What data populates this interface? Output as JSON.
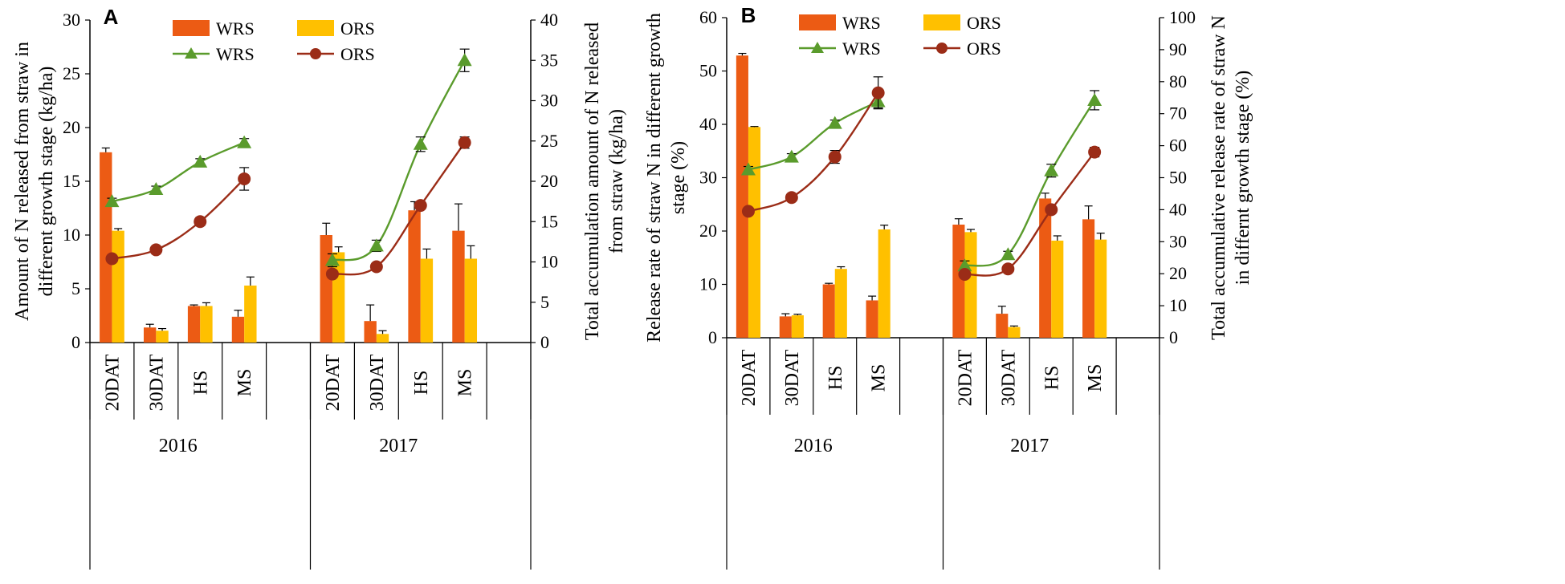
{
  "chart_data": [
    {
      "panel": "A",
      "type": "bar+line",
      "groups": [
        "2016",
        "2017"
      ],
      "categories": [
        "20DAT",
        "30DAT",
        "HS",
        "MS",
        "20DAT",
        "30DAT",
        "HS",
        "MS"
      ],
      "bar_series": [
        {
          "name": "WRS",
          "color": "#ec5b14",
          "values": [
            17.7,
            1.4,
            3.4,
            2.4,
            10.0,
            2.0,
            12.3,
            10.4
          ],
          "errors": [
            0.4,
            0.3,
            0.1,
            0.6,
            1.1,
            1.5,
            0.8,
            2.5
          ]
        },
        {
          "name": "ORS",
          "color": "#ffc000",
          "values": [
            10.4,
            1.1,
            3.4,
            5.3,
            8.4,
            0.8,
            7.8,
            7.8
          ],
          "errors": [
            0.2,
            0.2,
            0.3,
            0.8,
            0.5,
            0.3,
            0.9,
            1.2
          ]
        }
      ],
      "line_series": [
        {
          "name": "WRS",
          "color": "#5a9b2c",
          "marker": "triangle",
          "values": [
            17.5,
            19.0,
            22.4,
            24.8,
            10.2,
            12.0,
            24.6,
            35.0
          ],
          "errors": [
            0.4,
            0.4,
            0.4,
            0.5,
            0.8,
            0.7,
            0.9,
            1.4
          ]
        },
        {
          "name": "ORS",
          "color": "#9b2c17",
          "marker": "circle",
          "values": [
            10.4,
            11.5,
            15.0,
            20.3,
            8.5,
            9.4,
            17.0,
            24.8
          ],
          "errors": [
            0.2,
            0.2,
            0.5,
            1.4,
            0.3,
            0.3,
            0.3,
            0.7
          ]
        }
      ],
      "ylim_left": [
        0,
        30
      ],
      "yticks_left": [
        "0",
        "5",
        "10",
        "15",
        "20",
        "25",
        "30"
      ],
      "ylim_right": [
        0,
        40
      ],
      "yticks_right": [
        "0",
        "5",
        "10",
        "15",
        "20",
        "25",
        "30",
        "35",
        "40"
      ],
      "ylabel_left": [
        "Amount of N released from straw in",
        "different growth stage (kg/ha)"
      ],
      "ylabel_right": [
        "Total accumulation amount of N released",
        "from straw (kg/ha)"
      ]
    },
    {
      "panel": "B",
      "type": "bar+line",
      "groups": [
        "2016",
        "2017"
      ],
      "categories": [
        "20DAT",
        "30DAT",
        "HS",
        "MS",
        "20DAT",
        "30DAT",
        "HS",
        "MS"
      ],
      "bar_series": [
        {
          "name": "WRS",
          "color": "#ec5b14",
          "values": [
            52.9,
            4.0,
            10.0,
            7.0,
            21.2,
            4.5,
            26.1,
            22.2
          ],
          "errors": [
            0.4,
            0.5,
            0.2,
            0.8,
            1.1,
            1.4,
            1.0,
            2.5
          ]
        },
        {
          "name": "ORS",
          "color": "#ffc000",
          "values": [
            39.5,
            4.2,
            12.9,
            20.3,
            19.8,
            2.0,
            18.2,
            18.4
          ],
          "errors": [
            0.1,
            0.2,
            0.4,
            0.8,
            0.5,
            0.2,
            0.9,
            1.2
          ]
        }
      ],
      "line_series": [
        {
          "name": "WRS",
          "color": "#5a9b2c",
          "marker": "triangle",
          "values": [
            52.5,
            56.5,
            67.0,
            73.8,
            22.5,
            26.0,
            52.2,
            74.2
          ],
          "errors": [
            1.0,
            1.0,
            1.0,
            2.0,
            1.5,
            1.0,
            2.0,
            3.0
          ]
        },
        {
          "name": "ORS",
          "color": "#9b2c17",
          "marker": "circle",
          "values": [
            39.5,
            43.8,
            56.5,
            76.5,
            19.8,
            21.5,
            40.0,
            58.0
          ],
          "errors": [
            0.2,
            0.2,
            2.0,
            5.0,
            0.5,
            0.4,
            0.5,
            1.5
          ]
        }
      ],
      "ylim_left": [
        0,
        60
      ],
      "yticks_left": [
        "0",
        "10",
        "20",
        "30",
        "40",
        "50",
        "60"
      ],
      "ylim_right": [
        0,
        100
      ],
      "yticks_right": [
        "0",
        "10",
        "20",
        "30",
        "40",
        "50",
        "60",
        "70",
        "80",
        "90",
        "100"
      ],
      "ylabel_left": [
        "Release rate of straw N in different growth",
        "stage  (%)"
      ],
      "ylabel_right": [
        "Total accumulative release rate of straw N",
        "in differnt growth stage (%)"
      ]
    }
  ]
}
